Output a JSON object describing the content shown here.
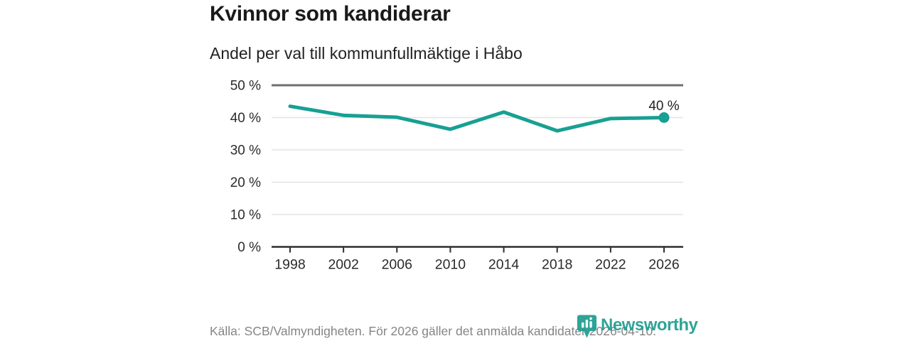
{
  "chart_data": {
    "type": "line",
    "title": "Kvinnor som kandiderar",
    "subtitle": "Andel per val till kommunfullmäktige i Håbo",
    "categories": [
      "1998",
      "2002",
      "2006",
      "2010",
      "2014",
      "2018",
      "2022",
      "2026"
    ],
    "values": [
      43.5,
      40.7,
      40.1,
      36.4,
      41.7,
      35.9,
      39.7,
      40
    ],
    "end_point_label": "40 %",
    "yticks": [
      0,
      10,
      20,
      30,
      40,
      50
    ],
    "ytick_labels": [
      "0 %",
      "10 %",
      "20 %",
      "30 %",
      "40 %",
      "50 %"
    ],
    "ylim": [
      0,
      50
    ],
    "grid": true,
    "legend": "none",
    "colors": {
      "line": "#17a093",
      "grid_light": "#e4e4e4",
      "grid_top": "#6f6f6f",
      "axis": "#2f2f2f",
      "tick_label": "#2b2b2b",
      "annotation": "#222222"
    }
  },
  "footer": {
    "source": "Källa: SCB/Valmyndigheten. För 2026 gäller det anmälda kandidater 2026-04-10.",
    "brand": "Newsworthy",
    "brand_color": "#1d9d90"
  }
}
